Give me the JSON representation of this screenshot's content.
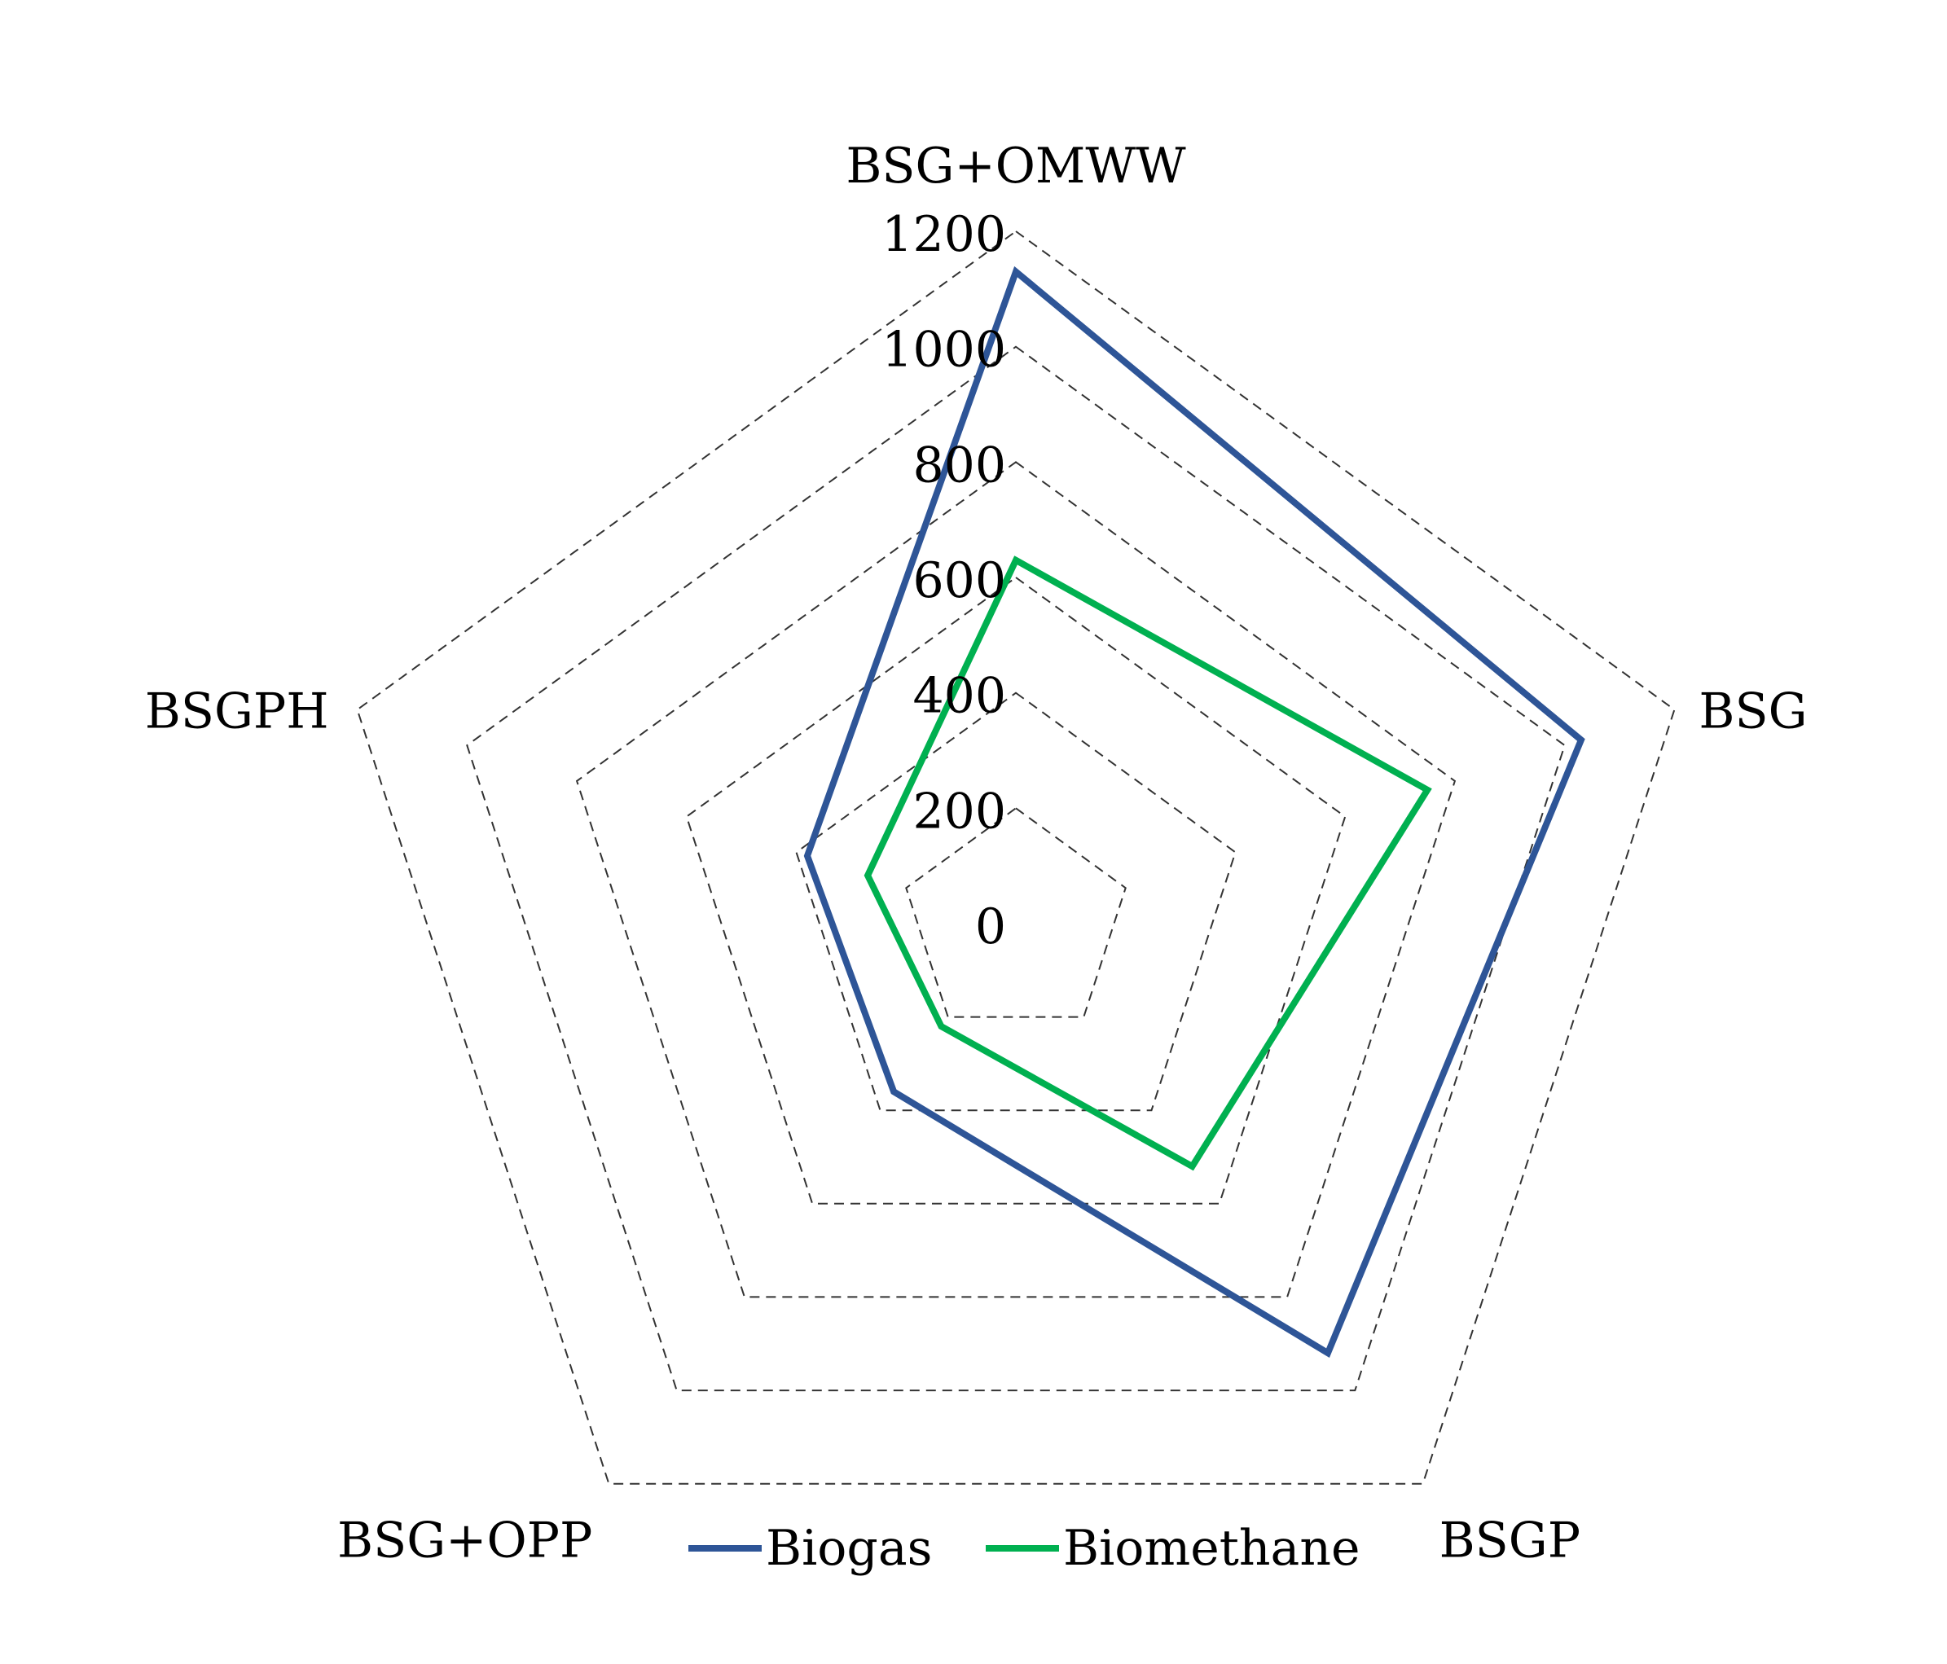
{
  "chart_data": {
    "type": "radar",
    "categories": [
      "BSG+OMWW",
      "BSG",
      "BSGP",
      "BSG+OPP",
      "BSGPH"
    ],
    "ticks": [
      0,
      200,
      400,
      600,
      800,
      1000,
      1200
    ],
    "rlim": [
      0,
      1200
    ],
    "grid": true,
    "legend_position": "bottom",
    "title": "",
    "series": [
      {
        "name": "Biogas",
        "color": "#2e5597",
        "values": [
          1130,
          1030,
          920,
          360,
          380
        ]
      },
      {
        "name": "Biomethane",
        "color": "#00b050",
        "values": [
          630,
          750,
          520,
          220,
          270
        ]
      }
    ]
  }
}
